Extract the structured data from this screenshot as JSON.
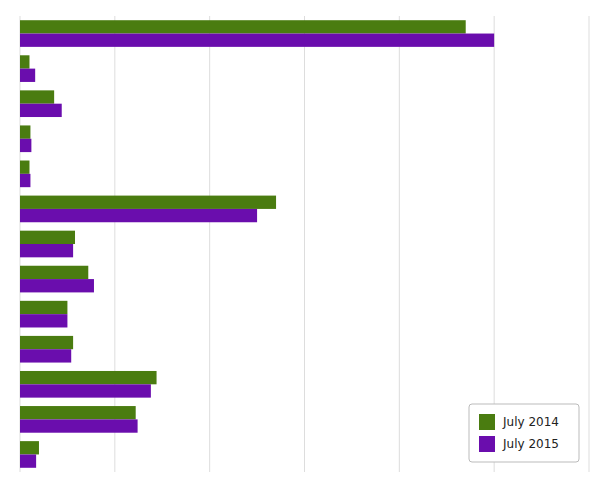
{
  "chart_data": {
    "type": "bar",
    "orientation": "horizontal",
    "categories": [
      null,
      null,
      null,
      null,
      null,
      null,
      null,
      null,
      null,
      null,
      null,
      null,
      null
    ],
    "series": [
      {
        "name": "July 2014",
        "color": "#4a7c10",
        "values": [
          23.5,
          0.5,
          1.8,
          0.55,
          0.5,
          13.5,
          2.9,
          3.6,
          2.5,
          2.8,
          7.2,
          6.1,
          1.0
        ]
      },
      {
        "name": "July 2015",
        "color": "#6a0dad",
        "values": [
          25.0,
          0.8,
          2.2,
          0.6,
          0.55,
          12.5,
          2.8,
          3.9,
          2.5,
          2.7,
          6.9,
          6.2,
          0.85
        ]
      }
    ],
    "xlim": [
      0,
      30
    ],
    "xticks": [
      0,
      5,
      10,
      15,
      20,
      25,
      30
    ],
    "grid": true,
    "legend": "lower right",
    "tick_labels": false
  }
}
